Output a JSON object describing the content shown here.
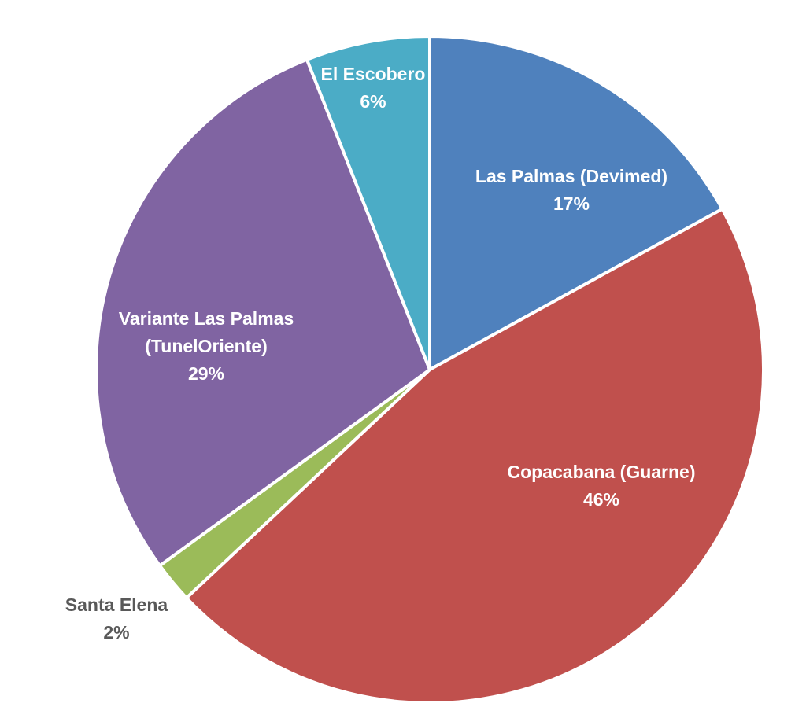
{
  "chart_data": {
    "type": "pie",
    "title": "",
    "series": [
      {
        "values": [
          17,
          46,
          2,
          29,
          6
        ],
        "categories": [
          "Las Palmas (Devimed)",
          "Copacabana (Guarne)",
          "Santa Elena",
          "Variante Las Palmas (TunelOriente)",
          "El Escobero"
        ]
      }
    ],
    "slices": [
      {
        "name": "Las Palmas (Devimed)",
        "value": 17,
        "label": [
          "Las Palmas (Devimed)",
          "17%"
        ],
        "color": "#4F81BD",
        "label_color": "#FFFFFF"
      },
      {
        "name": "Copacabana (Guarne)",
        "value": 46,
        "label": [
          "Copacabana (Guarne)",
          "46%"
        ],
        "color": "#C0504D",
        "label_color": "#FFFFFF"
      },
      {
        "name": "Santa Elena",
        "value": 2,
        "label": [
          "Santa Elena",
          "2%"
        ],
        "color": "#9BBB59",
        "label_color": "#595959"
      },
      {
        "name": "Variante Las Palmas (TunelOriente)",
        "value": 29,
        "label": [
          "Variante Las Palmas",
          "(TunelOriente)",
          "29%"
        ],
        "color": "#8064A2",
        "label_color": "#FFFFFF"
      },
      {
        "name": "El Escobero",
        "value": 6,
        "label": [
          "El Escobero",
          "6%"
        ],
        "color": "#4BACC6",
        "label_color": "#FFFFFF"
      }
    ],
    "start_angle": "12 o'clock",
    "direction": "clockwise",
    "legend": "none",
    "data_labels": "category name and percentage"
  }
}
